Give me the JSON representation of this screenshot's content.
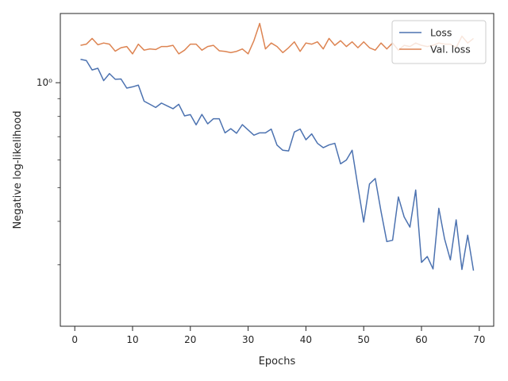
{
  "chart_data": {
    "type": "line",
    "title": "",
    "xlabel": "Epochs",
    "ylabel": "Negative log-likelihood",
    "y_scale": "log",
    "xlim": [
      -2.5,
      72.5
    ],
    "ylim": [
      0.2,
      1.58
    ],
    "x_ticks": [
      0,
      10,
      20,
      30,
      40,
      50,
      60,
      70
    ],
    "x_tick_labels": [
      "0",
      "10",
      "20",
      "30",
      "40",
      "50",
      "60",
      "70"
    ],
    "y_ticks": [
      1.0
    ],
    "y_tick_labels": [
      "10⁰"
    ],
    "y_minor_ticks": [
      0.3,
      0.4,
      0.5,
      0.6,
      0.7,
      0.8,
      0.9
    ],
    "grid": false,
    "legend_position": "top-right",
    "x": [
      1,
      2,
      3,
      4,
      5,
      6,
      7,
      8,
      9,
      10,
      11,
      12,
      13,
      14,
      15,
      16,
      17,
      18,
      19,
      20,
      21,
      22,
      23,
      24,
      25,
      26,
      27,
      28,
      29,
      30,
      31,
      32,
      33,
      34,
      35,
      36,
      37,
      38,
      39,
      40,
      41,
      42,
      43,
      44,
      45,
      46,
      47,
      48,
      49,
      50,
      51,
      52,
      53,
      54,
      55,
      56,
      57,
      58,
      59,
      60,
      61,
      62,
      63,
      64,
      65,
      66,
      67,
      68,
      69
    ],
    "series": [
      {
        "name": "Loss",
        "color": "#4c72b0",
        "values": [
          1.167,
          1.158,
          1.088,
          1.1,
          1.014,
          1.062,
          1.023,
          1.025,
          0.965,
          0.973,
          0.984,
          0.885,
          0.867,
          0.849,
          0.874,
          0.858,
          0.842,
          0.867,
          0.803,
          0.81,
          0.757,
          0.811,
          0.762,
          0.788,
          0.788,
          0.718,
          0.738,
          0.716,
          0.758,
          0.732,
          0.707,
          0.718,
          0.718,
          0.736,
          0.662,
          0.64,
          0.637,
          0.722,
          0.736,
          0.686,
          0.713,
          0.67,
          0.651,
          0.663,
          0.67,
          0.585,
          0.6,
          0.64,
          0.503,
          0.398,
          0.512,
          0.531,
          0.427,
          0.35,
          0.353,
          0.47,
          0.412,
          0.385,
          0.492,
          0.305,
          0.317,
          0.292,
          0.436,
          0.356,
          0.31,
          0.404,
          0.291,
          0.365,
          0.289
        ]
      },
      {
        "name": "Val. loss",
        "color": "#dd8452",
        "values": [
          1.28,
          1.29,
          1.34,
          1.285,
          1.3,
          1.29,
          1.232,
          1.26,
          1.27,
          1.21,
          1.29,
          1.24,
          1.25,
          1.245,
          1.27,
          1.27,
          1.28,
          1.21,
          1.24,
          1.29,
          1.29,
          1.24,
          1.27,
          1.28,
          1.235,
          1.23,
          1.22,
          1.23,
          1.25,
          1.21,
          1.32,
          1.48,
          1.25,
          1.3,
          1.27,
          1.22,
          1.26,
          1.31,
          1.23,
          1.3,
          1.29,
          1.31,
          1.25,
          1.34,
          1.28,
          1.32,
          1.27,
          1.31,
          1.26,
          1.31,
          1.26,
          1.24,
          1.3,
          1.25,
          1.3,
          1.24,
          1.28,
          1.27,
          1.3,
          1.28,
          1.27,
          1.28,
          1.3,
          1.29,
          1.29,
          1.26,
          1.36,
          1.3,
          1.34
        ]
      }
    ]
  }
}
